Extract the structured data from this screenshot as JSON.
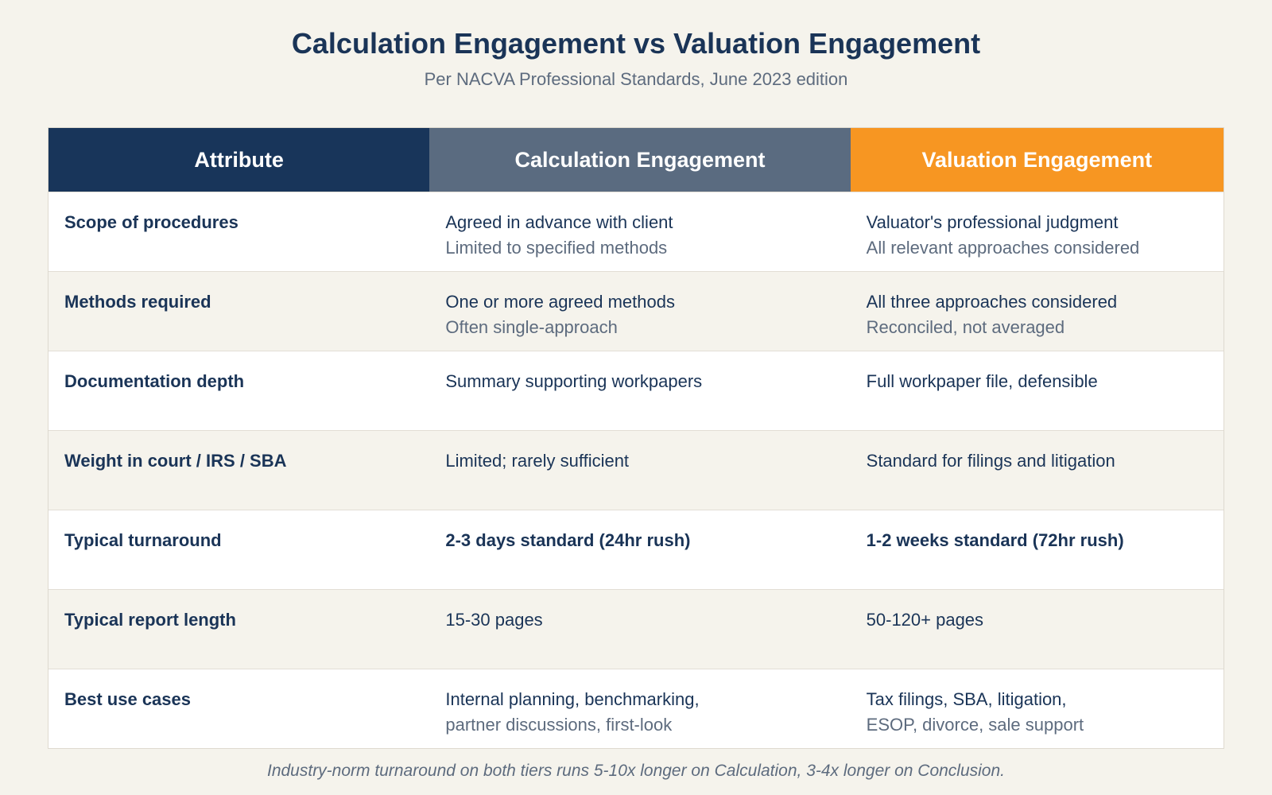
{
  "header": {
    "title": "Calculation Engagement vs Valuation Engagement",
    "subtitle": "Per NACVA Professional Standards, June 2023 edition"
  },
  "table": {
    "columns": [
      "Attribute",
      "Calculation Engagement",
      "Valuation Engagement"
    ],
    "rows": [
      [
        "Scope of procedures",
        [
          "Agreed in advance with client",
          "Limited to specified methods"
        ],
        [
          "Valuator's professional judgment",
          "All relevant approaches considered"
        ]
      ],
      [
        "Methods required",
        [
          "One or more agreed methods",
          "Often single-approach"
        ],
        [
          "All three approaches considered",
          "Reconciled, not averaged"
        ]
      ],
      [
        "Documentation depth",
        [
          "Summary supporting workpapers"
        ],
        [
          "Full workpaper file, defensible"
        ]
      ],
      [
        "Weight in court / IRS / SBA",
        [
          "Limited; rarely sufficient"
        ],
        [
          "Standard for filings and litigation"
        ]
      ],
      [
        "Typical turnaround",
        [
          "2-3 days standard (24hr rush)"
        ],
        [
          "1-2 weeks standard (72hr rush)"
        ]
      ],
      [
        "Typical report length",
        [
          "15-30 pages"
        ],
        [
          "50-120+ pages"
        ]
      ],
      [
        "Best use cases",
        [
          "Internal planning, benchmarking,",
          "partner discussions, first-look"
        ],
        [
          "Tax filings, SBA, litigation,",
          "ESOP, divorce, sale support"
        ]
      ]
    ]
  },
  "footer": {
    "note": "Industry-norm turnaround on both tiers runs 5-10x longer on Calculation, 3-4x longer on Conclusion."
  }
}
